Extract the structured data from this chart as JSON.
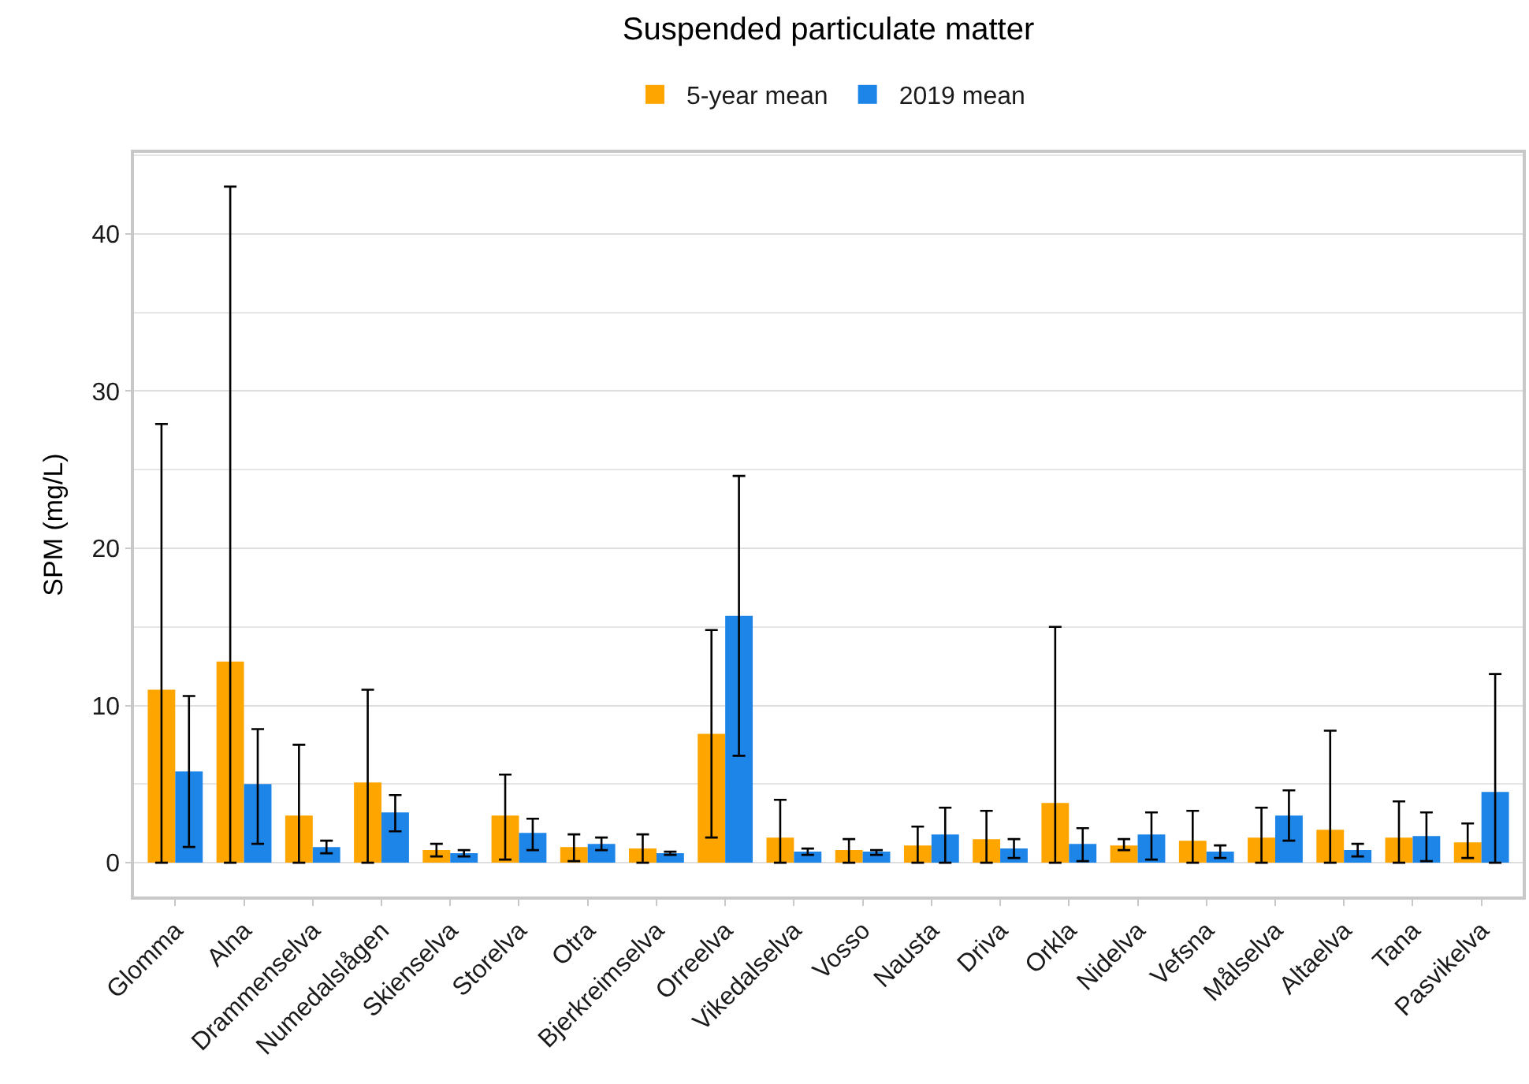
{
  "chart_data": {
    "type": "bar",
    "title": "Suspended particulate matter",
    "ylabel": "SPM (mg/L)",
    "categories": [
      "Glomma",
      "Alna",
      "Drammenselva",
      "Numedalslågen",
      "Skienselva",
      "Storelva",
      "Otra",
      "Bjerkreimselva",
      "Orreelva",
      "Vikedalselva",
      "Vosso",
      "Nausta",
      "Driva",
      "Orkla",
      "Nidelva",
      "Vefsna",
      "Målselva",
      "Altaelva",
      "Tana",
      "Pasvikelva"
    ],
    "series": [
      {
        "name": "5-year mean",
        "color": "#ffa500",
        "values": [
          11.0,
          12.8,
          3.0,
          5.1,
          0.8,
          3.0,
          1.0,
          0.9,
          8.2,
          1.6,
          0.8,
          1.1,
          1.5,
          3.8,
          1.1,
          1.4,
          1.6,
          2.1,
          1.6,
          1.3
        ],
        "errors": [
          [
            0,
            27.9
          ],
          [
            0,
            43.0
          ],
          [
            0,
            7.5
          ],
          [
            0,
            11.0
          ],
          [
            0.4,
            1.2
          ],
          [
            0.2,
            5.6
          ],
          [
            0.1,
            1.8
          ],
          [
            0,
            1.8
          ],
          [
            1.6,
            14.8
          ],
          [
            0,
            4.0
          ],
          [
            0,
            1.5
          ],
          [
            0,
            2.3
          ],
          [
            0,
            3.3
          ],
          [
            0,
            15.0
          ],
          [
            0.8,
            1.5
          ],
          [
            0,
            3.3
          ],
          [
            0,
            3.5
          ],
          [
            0,
            8.4
          ],
          [
            0,
            3.9
          ],
          [
            0.3,
            2.5
          ]
        ]
      },
      {
        "name": "2019 mean",
        "color": "#1e85e8",
        "values": [
          5.8,
          5.0,
          1.0,
          3.2,
          0.6,
          1.9,
          1.2,
          0.6,
          15.7,
          0.7,
          0.7,
          1.8,
          0.9,
          1.2,
          1.8,
          0.7,
          3.0,
          0.8,
          1.7,
          4.5
        ],
        "errors": [
          [
            1.0,
            10.6
          ],
          [
            1.2,
            8.5
          ],
          [
            0.6,
            1.4
          ],
          [
            2.0,
            4.3
          ],
          [
            0.4,
            0.8
          ],
          [
            0.8,
            2.8
          ],
          [
            0.8,
            1.6
          ],
          [
            0.5,
            0.7
          ],
          [
            6.8,
            24.6
          ],
          [
            0.5,
            0.9
          ],
          [
            0.5,
            0.8
          ],
          [
            0,
            3.5
          ],
          [
            0.3,
            1.5
          ],
          [
            0.1,
            2.2
          ],
          [
            0.2,
            3.2
          ],
          [
            0.3,
            1.1
          ],
          [
            1.4,
            4.6
          ],
          [
            0.4,
            1.2
          ],
          [
            0.1,
            3.2
          ],
          [
            0,
            12.0
          ]
        ]
      }
    ],
    "ylim": [
      -2.15,
      45.15
    ],
    "yticks": [
      0,
      {
        "value": 5,
        "label": null
      },
      10,
      {
        "value": 15,
        "label": null
      },
      20,
      {
        "value": 25,
        "label": null
      },
      30,
      {
        "value": 35,
        "label": null
      },
      40,
      {
        "value": 45,
        "label": null
      }
    ],
    "grid": "y",
    "legend": "top"
  }
}
